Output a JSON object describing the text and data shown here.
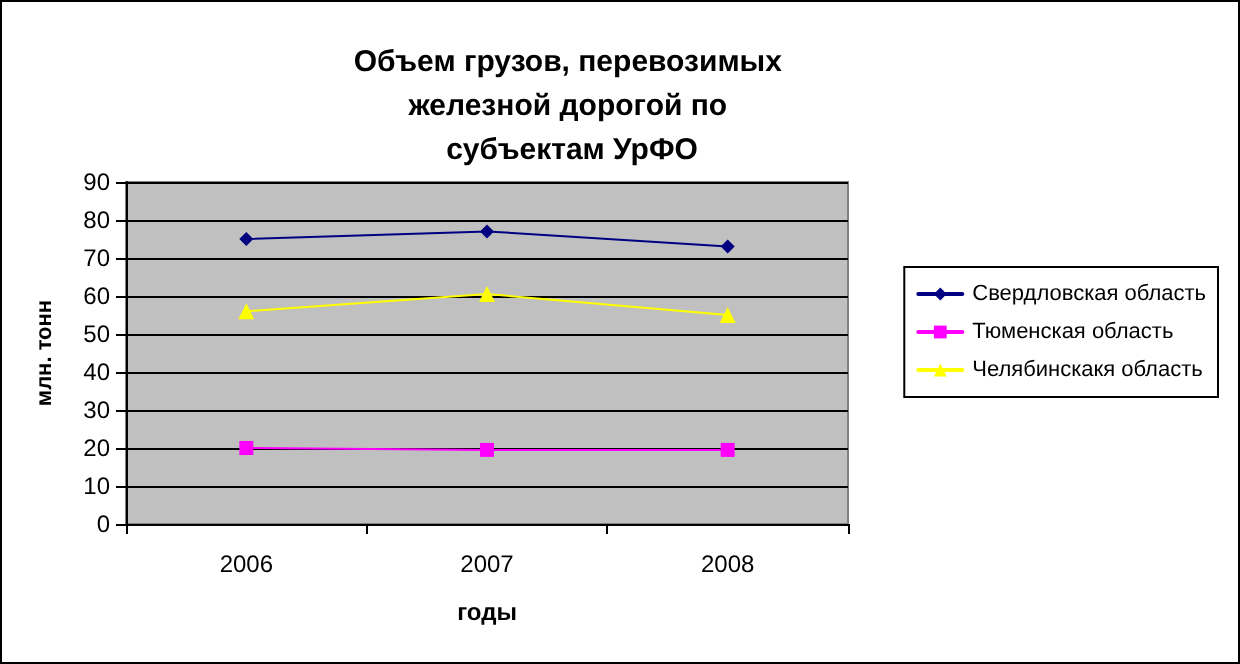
{
  "chart_data": {
    "type": "line",
    "title": "Объем грузов, перевозимых железной дорогой по субъектам УрФО",
    "xlabel": "годы",
    "ylabel": "млн. тонн",
    "categories": [
      "2006",
      "2007",
      "2008"
    ],
    "series": [
      {
        "name": "Свердловская область",
        "color": "#000080",
        "marker": "diamond",
        "values": [
          75,
          77,
          73
        ]
      },
      {
        "name": "Тюменская область",
        "color": "#ff00ff",
        "marker": "square",
        "values": [
          20,
          19.5,
          19.5
        ]
      },
      {
        "name": "Челябинскакя область",
        "color": "#ffff00",
        "marker": "triangle",
        "values": [
          56,
          60.5,
          55
        ]
      }
    ],
    "ylim": [
      0,
      90
    ],
    "yticks": [
      0,
      10,
      20,
      30,
      40,
      50,
      60,
      70,
      80,
      90
    ],
    "grid": "y",
    "legend": "right",
    "line_style": "solid"
  }
}
